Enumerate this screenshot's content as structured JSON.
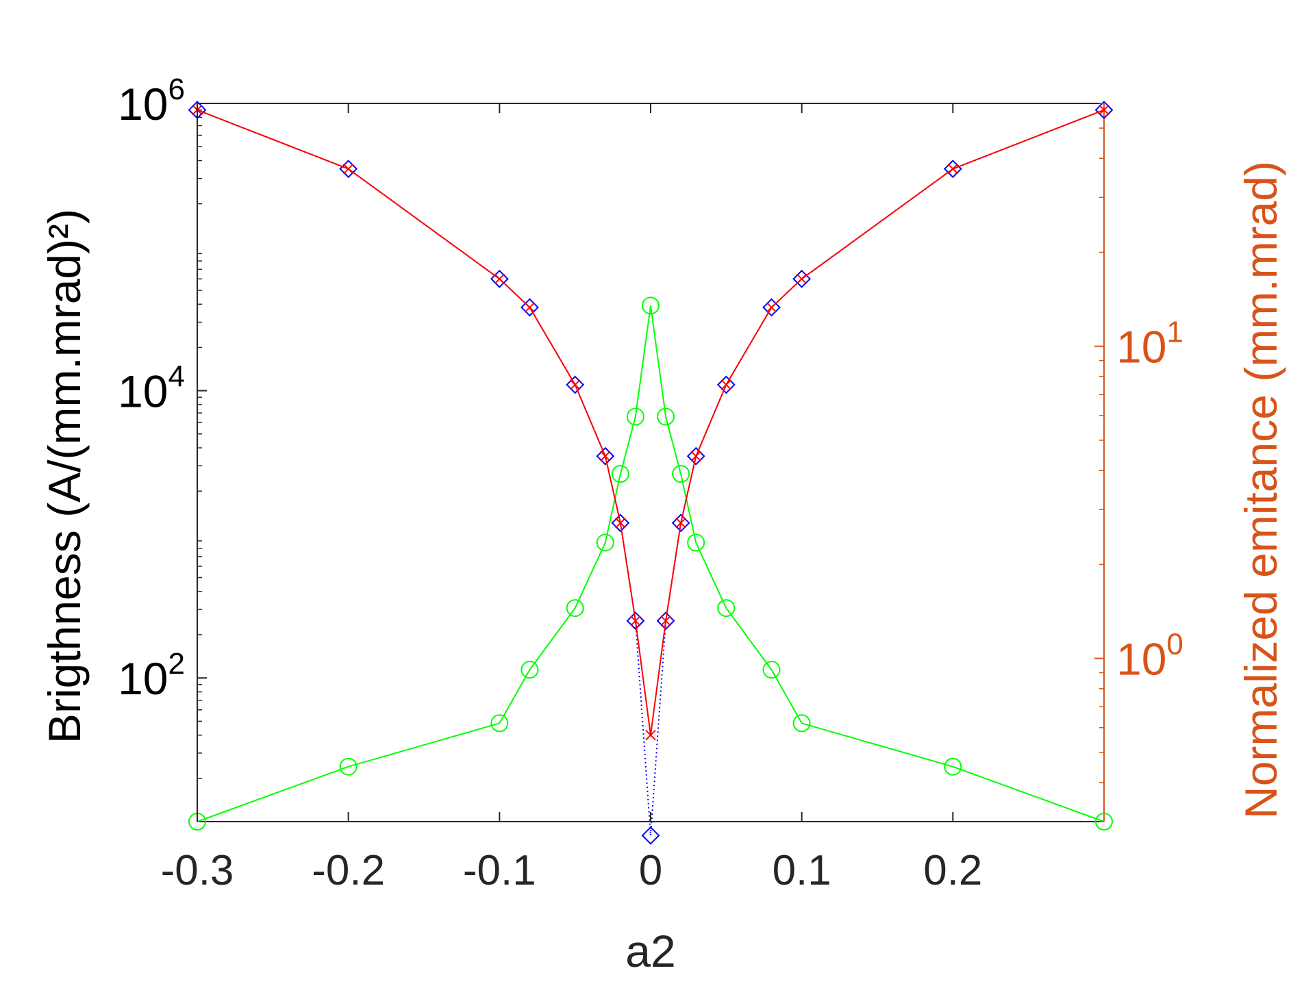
{
  "chart_data": {
    "type": "line",
    "title": "",
    "xlabel": "a2",
    "ylabel_left": "Brigthness (A/(mm.mrad)²)",
    "ylabel_right": "Normalized emitance (mm.mrad)",
    "xlim": [
      -0.3,
      0.3
    ],
    "ylim_left": [
      10,
      1000000
    ],
    "ylim_right": [
      0.3,
      60
    ],
    "yscale_left": "log",
    "yscale_right": "log",
    "grid": false,
    "legend": "none",
    "x_ticks": [
      {
        "value": -0.3,
        "label": "-0.3"
      },
      {
        "value": -0.2,
        "label": "-0.2"
      },
      {
        "value": -0.1,
        "label": "-0.1"
      },
      {
        "value": 0,
        "label": "0"
      },
      {
        "value": 0.1,
        "label": "0.1"
      },
      {
        "value": 0.2,
        "label": "0.2"
      }
    ],
    "y_left_ticks": [
      {
        "value": 100,
        "base": "10",
        "exp": "2"
      },
      {
        "value": 10000,
        "base": "10",
        "exp": "4"
      },
      {
        "value": 1000000,
        "base": "10",
        "exp": "6"
      }
    ],
    "y_right_ticks": [
      {
        "value": 1,
        "base": "10",
        "exp": "0"
      },
      {
        "value": 10,
        "base": "10",
        "exp": "1"
      }
    ],
    "series": [
      {
        "axis": "left",
        "color": "#0000ff",
        "marker": "diamond",
        "line": "dotted",
        "x": [
          -0.3,
          -0.2,
          -0.1,
          -0.08,
          -0.05,
          -0.03,
          -0.02,
          -0.01,
          0,
          0.01,
          0.02,
          0.03,
          0.05,
          0.08,
          0.1,
          0.2,
          0.3
        ],
        "y": [
          900000,
          350000,
          60000,
          38000,
          11000,
          3500,
          1200,
          250,
          8,
          250,
          1200,
          3500,
          11000,
          38000,
          60000,
          350000,
          900000
        ]
      },
      {
        "axis": "left",
        "color": "#ff0000",
        "marker": "x",
        "line": "solid",
        "x": [
          -0.3,
          -0.2,
          -0.1,
          -0.08,
          -0.05,
          -0.03,
          -0.02,
          -0.01,
          0,
          0.01,
          0.02,
          0.03,
          0.05,
          0.08,
          0.1,
          0.2,
          0.3
        ],
        "y": [
          900000,
          350000,
          60000,
          38000,
          11000,
          3500,
          1200,
          250,
          40,
          250,
          1200,
          3500,
          11000,
          38000,
          60000,
          350000,
          900000
        ]
      },
      {
        "axis": "right",
        "color": "#00ff00",
        "marker": "circle",
        "line": "solid",
        "x": [
          -0.3,
          -0.2,
          -0.1,
          -0.08,
          -0.05,
          -0.03,
          -0.02,
          -0.01,
          0,
          0.01,
          0.02,
          0.03,
          0.05,
          0.08,
          0.1,
          0.2,
          0.3
        ],
        "y": [
          0.3,
          0.45,
          0.62,
          0.92,
          1.45,
          2.35,
          3.9,
          5.95,
          13.5,
          5.95,
          3.9,
          2.35,
          1.45,
          0.92,
          0.62,
          0.45,
          0.3
        ]
      }
    ],
    "colors": {
      "axis": "#262626",
      "right_axis": "#d95319"
    }
  }
}
